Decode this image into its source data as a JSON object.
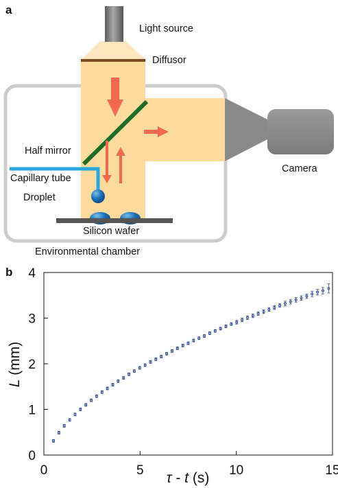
{
  "panel_a": {
    "letter": "a",
    "labels": {
      "light_source": "Light source",
      "diffusor": "Diffusor",
      "half_mirror": "Half mirror",
      "capillary_tube": "Capillary tube",
      "droplet": "Droplet",
      "silicon_wafer": "Silicon wafer",
      "camera": "Camera",
      "environmental_chamber": "Environmental chamber"
    },
    "colors": {
      "light": "#fddb9c",
      "light_top": "#fee9c4",
      "chamber": "#cccccc",
      "lamp": "#808080",
      "diffusor": "#7a4a22",
      "mirror": "#1e6b2a",
      "tube": "#29a8df",
      "droplet": "#1d72b8",
      "wafer": "#555555",
      "arrow": "#ef6a4f",
      "camera": "#8a8a8a"
    }
  },
  "panel_b": {
    "letter": "b",
    "chart_data": {
      "type": "scatter",
      "xlabel": {
        "var1": "τ",
        "sep": " - ",
        "var2": "t",
        "unit": " (s)"
      },
      "ylabel": {
        "var": "L",
        "unit": " (mm)"
      },
      "xlim": [
        0,
        15
      ],
      "ylim": [
        0,
        4
      ],
      "xticks": [
        0,
        5,
        10,
        15
      ],
      "yticks": [
        0,
        1,
        2,
        3,
        4
      ],
      "marker_color": "#2f4a8f",
      "series": [
        {
          "x": [
            0.5,
            0.78,
            1.06,
            1.34,
            1.62,
            1.9,
            2.18,
            2.46,
            2.74,
            3.02,
            3.3,
            3.58,
            3.86,
            4.14,
            4.42,
            4.7,
            4.98,
            5.26,
            5.54,
            5.82,
            6.1,
            6.38,
            6.66,
            6.94,
            7.22,
            7.5,
            7.78,
            8.06,
            8.34,
            8.62,
            8.9,
            9.18,
            9.46,
            9.74,
            10.02,
            10.3,
            10.58,
            10.86,
            11.14,
            11.42,
            11.7,
            11.98,
            12.26,
            12.54,
            12.82,
            13.1,
            13.38,
            13.66,
            13.94,
            14.22,
            14.5,
            14.8
          ],
          "y": [
            0.31,
            0.49,
            0.64,
            0.77,
            0.89,
            1.0,
            1.1,
            1.2,
            1.29,
            1.38,
            1.46,
            1.54,
            1.62,
            1.69,
            1.77,
            1.84,
            1.91,
            1.97,
            2.04,
            2.1,
            2.16,
            2.22,
            2.28,
            2.34,
            2.4,
            2.45,
            2.51,
            2.56,
            2.61,
            2.67,
            2.72,
            2.77,
            2.82,
            2.87,
            2.91,
            2.96,
            3.01,
            3.05,
            3.1,
            3.14,
            3.19,
            3.23,
            3.28,
            3.32,
            3.36,
            3.4,
            3.44,
            3.48,
            3.53,
            3.57,
            3.6,
            3.65
          ],
          "err": [
            0.03,
            0.03,
            0.03,
            0.03,
            0.03,
            0.03,
            0.03,
            0.03,
            0.03,
            0.03,
            0.03,
            0.03,
            0.03,
            0.03,
            0.03,
            0.03,
            0.03,
            0.03,
            0.03,
            0.03,
            0.03,
            0.03,
            0.03,
            0.03,
            0.03,
            0.03,
            0.03,
            0.03,
            0.03,
            0.03,
            0.03,
            0.03,
            0.03,
            0.03,
            0.04,
            0.04,
            0.04,
            0.04,
            0.04,
            0.04,
            0.04,
            0.04,
            0.04,
            0.05,
            0.05,
            0.05,
            0.05,
            0.05,
            0.06,
            0.06,
            0.07,
            0.1
          ]
        }
      ]
    }
  }
}
